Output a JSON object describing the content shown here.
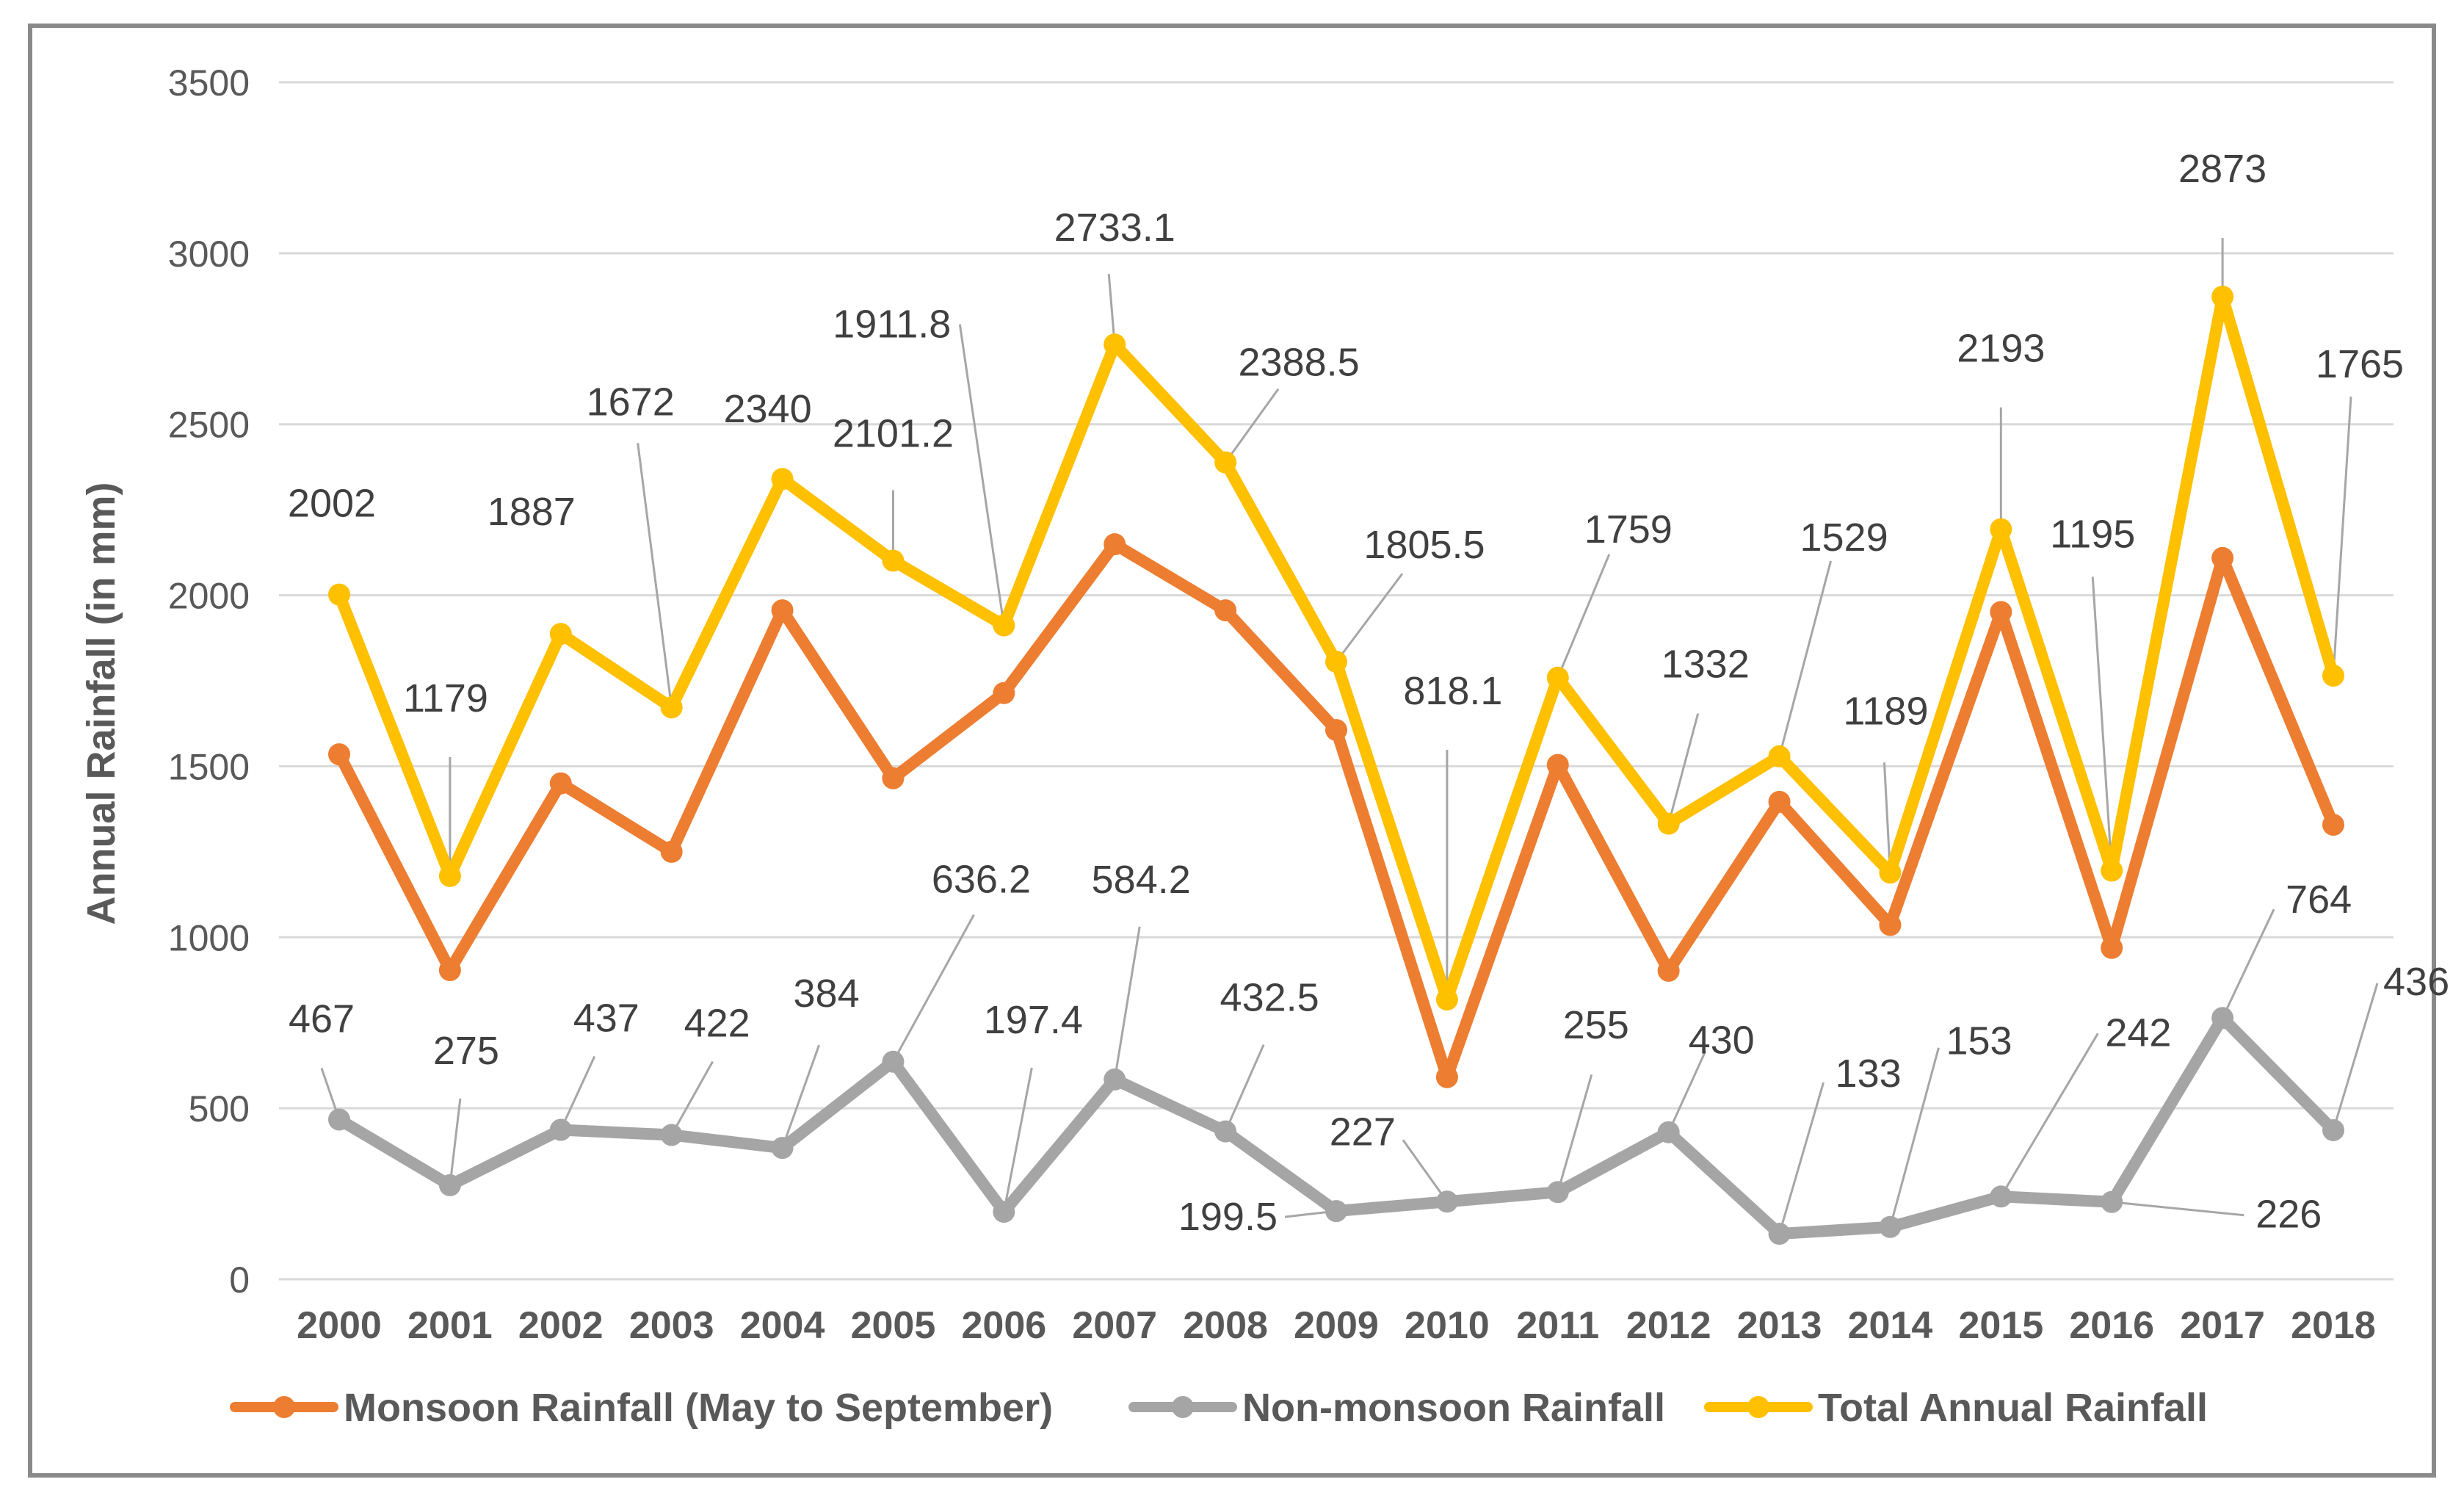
{
  "chart_data": {
    "type": "line",
    "title": "",
    "xlabel": "",
    "ylabel": "Annual Rainfall (in mm)",
    "ylim": [
      0,
      3500
    ],
    "yticks": [
      0,
      500,
      1000,
      1500,
      2000,
      2500,
      3000,
      3500
    ],
    "grid": true,
    "legend_position": "bottom",
    "categories": [
      "2000",
      "2001",
      "2002",
      "2003",
      "2004",
      "2005",
      "2006",
      "2007",
      "2008",
      "2009",
      "2010",
      "2011",
      "2012",
      "2013",
      "2014",
      "2015",
      "2016",
      "2017",
      "2018"
    ],
    "series": [
      {
        "name": "Monsoon Rainfall (May to September)",
        "color": "#ed7d31",
        "values": [
          1535,
          904,
          1450,
          1250,
          1956,
          1465,
          1714,
          2149,
          1956,
          1606,
          591,
          1504,
          902,
          1396,
          1036,
          1951,
          969,
          2109,
          1329
        ],
        "labels": null
      },
      {
        "name": "Non-monsoon Rainfall",
        "color": "#a5a5a5",
        "values": [
          467,
          275,
          437,
          422,
          384,
          636.2,
          197.4,
          584.2,
          432.5,
          199.5,
          227,
          255,
          430,
          133,
          153,
          242,
          226,
          764,
          436
        ],
        "labels": [
          "467",
          "275",
          "437",
          "422",
          "384",
          "636.2",
          "197.4",
          "584.2",
          "432.5",
          "199.5",
          "227",
          "255",
          "430",
          "133",
          "153",
          "242",
          "226",
          "764",
          "436"
        ]
      },
      {
        "name": "Total Annual Rainfall",
        "color": "#ffc000",
        "values": [
          2002,
          1179,
          1887,
          1672,
          2340,
          2101.2,
          1911.8,
          2733.1,
          2388.5,
          1805.5,
          818.1,
          1759,
          1332,
          1529,
          1189,
          2193,
          1195,
          2873,
          1765
        ],
        "labels": [
          "2002",
          "1179",
          "1887",
          "1672",
          "2340",
          "2101.2",
          "1911.8",
          "2733.1",
          "2388.5",
          "1805.5",
          "818.1",
          "1759",
          "1332",
          "1529",
          "1189",
          "2193",
          "1195",
          "2873",
          "1765"
        ]
      }
    ]
  }
}
